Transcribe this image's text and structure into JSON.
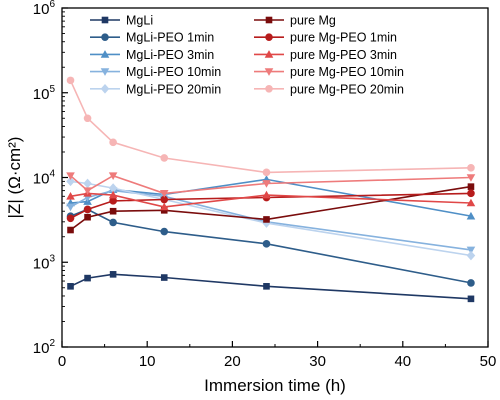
{
  "chart_data": {
    "type": "line",
    "xlabel": "Immersion time (h)",
    "ylabel": "|Z| (Ω·cm²)",
    "xlim": [
      0,
      50
    ],
    "ylim": [
      100,
      1000000
    ],
    "yscale": "log",
    "grid": false,
    "legend_position": "top, two columns",
    "x_ticks": [
      {
        "value": 0,
        "label": "0"
      },
      {
        "value": 10,
        "label": "10"
      },
      {
        "value": 20,
        "label": "20"
      },
      {
        "value": 30,
        "label": "30"
      },
      {
        "value": 40,
        "label": "40"
      },
      {
        "value": 50,
        "label": "50"
      }
    ],
    "y_ticks": [
      {
        "value": 100,
        "base": "10",
        "exp": "2"
      },
      {
        "value": 1000,
        "base": "10",
        "exp": "3"
      },
      {
        "value": 10000,
        "base": "10",
        "exp": "4"
      },
      {
        "value": 100000,
        "base": "10",
        "exp": "5"
      },
      {
        "value": 1000000,
        "base": "10",
        "exp": "6"
      }
    ],
    "x": [
      1,
      3,
      6,
      12,
      24,
      48
    ],
    "series": [
      {
        "name": "MgLi",
        "color": "#1f3864",
        "marker": "square",
        "values": [
          520,
          650,
          720,
          660,
          520,
          370
        ]
      },
      {
        "name": "MgLi-PEO 1min",
        "color": "#2e5d8a",
        "marker": "circle",
        "values": [
          3500,
          4200,
          2950,
          2300,
          1650,
          570
        ]
      },
      {
        "name": "MgLi-PEO 3min",
        "color": "#4f8fc6",
        "marker": "triangle-up",
        "values": [
          5000,
          5200,
          7200,
          6300,
          9500,
          3500
        ]
      },
      {
        "name": "MgLi-PEO 10min",
        "color": "#86b2de",
        "marker": "triangle-down",
        "values": [
          4500,
          5800,
          7000,
          6000,
          3000,
          1400
        ]
      },
      {
        "name": "MgLi-PEO 20min",
        "color": "#bcd3ee",
        "marker": "diamond",
        "values": [
          9000,
          8500,
          7500,
          5500,
          2900,
          1200
        ]
      },
      {
        "name": "pure Mg",
        "color": "#7a0c0c",
        "marker": "square",
        "values": [
          2400,
          3400,
          4000,
          4100,
          3200,
          7800
        ]
      },
      {
        "name": "pure Mg-PEO 1min",
        "color": "#b71c1c",
        "marker": "circle",
        "values": [
          3300,
          4200,
          5300,
          5500,
          5800,
          6500
        ]
      },
      {
        "name": "pure Mg-PEO 3min",
        "color": "#e04848",
        "marker": "triangle-up",
        "values": [
          6000,
          6500,
          6200,
          4500,
          6200,
          5000
        ]
      },
      {
        "name": "pure Mg-PEO 10min",
        "color": "#ee7b7b",
        "marker": "triangle-down",
        "values": [
          10500,
          7000,
          10500,
          6500,
          8500,
          10000
        ]
      },
      {
        "name": "pure Mg-PEO 20min",
        "color": "#f6b5b5",
        "marker": "circle",
        "values": [
          140000,
          50000,
          26000,
          17000,
          11500,
          13000
        ]
      }
    ]
  }
}
